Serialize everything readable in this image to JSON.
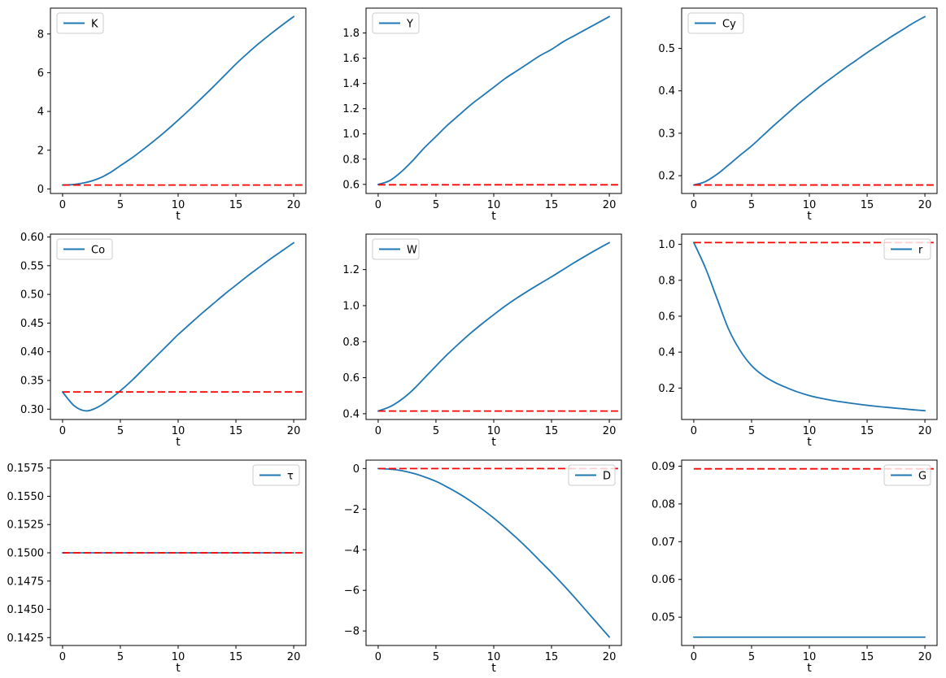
{
  "figure": {
    "background": "#ffffff",
    "series_color": "#1f77b4",
    "steady_state_color": "#ff0000",
    "spine_color": "#000000",
    "legend_border_color": "#cccccc",
    "xlabel": "t",
    "xticks": [
      0,
      5,
      10,
      15,
      20
    ],
    "xtick_labels": [
      "0",
      "5",
      "10",
      "15",
      "20"
    ],
    "xlim": [
      -1.05,
      21.05
    ]
  },
  "chart_data": [
    {
      "type": "line",
      "name": "K",
      "legend_label": "K",
      "legend_position": "upper-left",
      "xlabel": "t",
      "x": [
        0,
        1,
        2,
        3,
        4,
        5,
        6,
        7,
        8,
        9,
        10,
        11,
        12,
        13,
        14,
        15,
        16,
        17,
        18,
        19,
        20
      ],
      "series": [
        {
          "name": "K",
          "values": [
            0.2,
            0.23,
            0.33,
            0.51,
            0.8,
            1.2,
            1.6,
            2.05,
            2.52,
            3.02,
            3.55,
            4.1,
            4.67,
            5.25,
            5.85,
            6.45,
            7.0,
            7.52,
            8.0,
            8.46,
            8.9
          ]
        },
        {
          "name": "steady-state",
          "style": "dashed",
          "constant": 0.2,
          "x_range": [
            0,
            21
          ]
        }
      ],
      "xlim": [
        -1.05,
        21.05
      ],
      "ylim": [
        -0.235,
        9.335
      ],
      "yticks": [
        0,
        2,
        4,
        6,
        8
      ],
      "ytick_labels": [
        "0",
        "2",
        "4",
        "6",
        "8"
      ],
      "grid": false
    },
    {
      "type": "line",
      "name": "Y",
      "legend_label": "Y",
      "legend_position": "upper-left",
      "xlabel": "t",
      "x": [
        0,
        1,
        2,
        3,
        4,
        5,
        6,
        7,
        8,
        9,
        10,
        11,
        12,
        13,
        14,
        15,
        16,
        17,
        18,
        19,
        20
      ],
      "series": [
        {
          "name": "Y",
          "values": [
            0.6,
            0.63,
            0.7,
            0.79,
            0.89,
            0.98,
            1.07,
            1.15,
            1.23,
            1.3,
            1.37,
            1.44,
            1.5,
            1.56,
            1.62,
            1.67,
            1.73,
            1.78,
            1.83,
            1.88,
            1.93
          ]
        },
        {
          "name": "steady-state",
          "style": "dashed",
          "constant": 0.597,
          "x_range": [
            0,
            21
          ]
        }
      ],
      "xlim": [
        -1.05,
        21.05
      ],
      "ylim": [
        0.528,
        1.997
      ],
      "yticks": [
        0.6,
        0.8,
        1.0,
        1.2,
        1.4,
        1.6,
        1.8
      ],
      "ytick_labels": [
        "0.6",
        "0.8",
        "1.0",
        "1.2",
        "1.4",
        "1.6",
        "1.8"
      ],
      "grid": false
    },
    {
      "type": "line",
      "name": "Cy",
      "legend_label": "Cy",
      "legend_position": "upper-left",
      "xlabel": "t",
      "x": [
        0,
        1,
        2,
        3,
        4,
        5,
        6,
        7,
        8,
        9,
        10,
        11,
        12,
        13,
        14,
        15,
        16,
        17,
        18,
        19,
        20
      ],
      "series": [
        {
          "name": "Cy",
          "values": [
            0.178,
            0.186,
            0.203,
            0.225,
            0.248,
            0.27,
            0.295,
            0.32,
            0.344,
            0.368,
            0.39,
            0.412,
            0.432,
            0.452,
            0.471,
            0.49,
            0.508,
            0.526,
            0.543,
            0.56,
            0.575
          ]
        },
        {
          "name": "steady-state",
          "style": "dashed",
          "constant": 0.178,
          "x_range": [
            0,
            21
          ]
        }
      ],
      "xlim": [
        -1.05,
        21.05
      ],
      "ylim": [
        0.158,
        0.595
      ],
      "yticks": [
        0.2,
        0.3,
        0.4,
        0.5
      ],
      "ytick_labels": [
        "0.2",
        "0.3",
        "0.4",
        "0.5"
      ],
      "grid": false
    },
    {
      "type": "line",
      "name": "Co",
      "legend_label": "Co",
      "legend_position": "upper-left",
      "xlabel": "t",
      "x": [
        0,
        1,
        2,
        3,
        4,
        5,
        6,
        7,
        8,
        9,
        10,
        11,
        12,
        13,
        14,
        15,
        16,
        17,
        18,
        19,
        20
      ],
      "series": [
        {
          "name": "Co",
          "values": [
            0.33,
            0.306,
            0.297,
            0.303,
            0.316,
            0.332,
            0.35,
            0.37,
            0.39,
            0.41,
            0.43,
            0.448,
            0.466,
            0.483,
            0.5,
            0.516,
            0.532,
            0.547,
            0.562,
            0.576,
            0.59
          ]
        },
        {
          "name": "steady-state",
          "style": "dashed",
          "constant": 0.33,
          "x_range": [
            0,
            21
          ]
        }
      ],
      "xlim": [
        -1.05,
        21.05
      ],
      "ylim": [
        0.282,
        0.605
      ],
      "yticks": [
        0.3,
        0.35,
        0.4,
        0.45,
        0.5,
        0.55,
        0.6
      ],
      "ytick_labels": [
        "0.30",
        "0.35",
        "0.40",
        "0.45",
        "0.50",
        "0.55",
        "0.60"
      ],
      "grid": false
    },
    {
      "type": "line",
      "name": "W",
      "legend_label": "W",
      "legend_position": "upper-left",
      "xlabel": "t",
      "x": [
        0,
        1,
        2,
        3,
        4,
        5,
        6,
        7,
        8,
        9,
        10,
        11,
        12,
        13,
        14,
        15,
        16,
        17,
        18,
        19,
        20
      ],
      "series": [
        {
          "name": "W",
          "values": [
            0.415,
            0.438,
            0.478,
            0.532,
            0.598,
            0.665,
            0.73,
            0.79,
            0.847,
            0.9,
            0.95,
            0.998,
            1.042,
            1.083,
            1.122,
            1.16,
            1.2,
            1.24,
            1.278,
            1.315,
            1.35
          ]
        },
        {
          "name": "steady-state",
          "style": "dashed",
          "constant": 0.415,
          "x_range": [
            0,
            21
          ]
        }
      ],
      "xlim": [
        -1.05,
        21.05
      ],
      "ylim": [
        0.368,
        1.397
      ],
      "yticks": [
        0.4,
        0.6,
        0.8,
        1.0,
        1.2
      ],
      "ytick_labels": [
        "0.4",
        "0.6",
        "0.8",
        "1.0",
        "1.2"
      ],
      "grid": false
    },
    {
      "type": "line",
      "name": "r",
      "legend_label": "r",
      "legend_position": "upper-right",
      "xlabel": "t",
      "x": [
        0,
        1,
        2,
        3,
        4,
        5,
        6,
        7,
        8,
        9,
        10,
        11,
        12,
        13,
        14,
        15,
        16,
        17,
        18,
        19,
        20
      ],
      "series": [
        {
          "name": "r",
          "values": [
            1.01,
            0.87,
            0.7,
            0.53,
            0.41,
            0.325,
            0.27,
            0.232,
            0.203,
            0.178,
            0.158,
            0.143,
            0.131,
            0.121,
            0.112,
            0.104,
            0.097,
            0.091,
            0.085,
            0.079,
            0.074
          ]
        },
        {
          "name": "steady-state",
          "style": "dashed",
          "constant": 1.01,
          "x_range": [
            0,
            21
          ]
        }
      ],
      "xlim": [
        -1.05,
        21.05
      ],
      "ylim": [
        0.025,
        1.057
      ],
      "yticks": [
        0.2,
        0.4,
        0.6,
        0.8,
        1.0
      ],
      "ytick_labels": [
        "0.2",
        "0.4",
        "0.6",
        "0.8",
        "1.0"
      ],
      "grid": false
    },
    {
      "type": "line",
      "name": "tau",
      "legend_label": "τ",
      "legend_position": "upper-right",
      "xlabel": "t",
      "x": [
        0,
        1,
        2,
        3,
        4,
        5,
        6,
        7,
        8,
        9,
        10,
        11,
        12,
        13,
        14,
        15,
        16,
        17,
        18,
        19,
        20
      ],
      "series": [
        {
          "name": "τ",
          "values": [
            0.15,
            0.15,
            0.15,
            0.15,
            0.15,
            0.15,
            0.15,
            0.15,
            0.15,
            0.15,
            0.15,
            0.15,
            0.15,
            0.15,
            0.15,
            0.15,
            0.15,
            0.15,
            0.15,
            0.15,
            0.15
          ]
        },
        {
          "name": "steady-state",
          "style": "dashed",
          "constant": 0.15,
          "x_range": [
            0,
            21
          ]
        }
      ],
      "xlim": [
        -1.05,
        21.05
      ],
      "ylim": [
        0.1418,
        0.1582
      ],
      "yticks": [
        0.1425,
        0.145,
        0.1475,
        0.15,
        0.1525,
        0.155,
        0.1575
      ],
      "ytick_labels": [
        "0.1425",
        "0.1450",
        "0.1475",
        "0.1500",
        "0.1525",
        "0.1550",
        "0.1575"
      ],
      "grid": false
    },
    {
      "type": "line",
      "name": "D",
      "legend_label": "D",
      "legend_position": "upper-right",
      "xlabel": "t",
      "x": [
        0,
        1,
        2,
        3,
        4,
        5,
        6,
        7,
        8,
        9,
        10,
        11,
        12,
        13,
        14,
        15,
        16,
        17,
        18,
        19,
        20
      ],
      "series": [
        {
          "name": "D",
          "values": [
            0.0,
            -0.03,
            -0.1,
            -0.23,
            -0.41,
            -0.63,
            -0.92,
            -1.24,
            -1.6,
            -2.0,
            -2.44,
            -2.92,
            -3.43,
            -3.97,
            -4.55,
            -5.12,
            -5.72,
            -6.35,
            -7.0,
            -7.65,
            -8.3
          ]
        },
        {
          "name": "steady-state",
          "style": "dashed",
          "constant": 0.0,
          "x_range": [
            0,
            21
          ]
        }
      ],
      "xlim": [
        -1.05,
        21.05
      ],
      "ylim": [
        -8.715,
        0.415
      ],
      "yticks": [
        0,
        -2,
        -4,
        -6,
        -8
      ],
      "ytick_labels": [
        "0",
        "−2",
        "−4",
        "−6",
        "−8"
      ],
      "grid": false
    },
    {
      "type": "line",
      "name": "G",
      "legend_label": "G",
      "legend_position": "upper-right",
      "xlabel": "t",
      "x": [
        0,
        1,
        2,
        3,
        4,
        5,
        6,
        7,
        8,
        9,
        10,
        11,
        12,
        13,
        14,
        15,
        16,
        17,
        18,
        19,
        20
      ],
      "series": [
        {
          "name": "G",
          "values": [
            0.0447,
            0.0447,
            0.0447,
            0.0447,
            0.0447,
            0.0447,
            0.0447,
            0.0447,
            0.0447,
            0.0447,
            0.0447,
            0.0447,
            0.0447,
            0.0447,
            0.0447,
            0.0447,
            0.0447,
            0.0447,
            0.0447,
            0.0447,
            0.0447
          ]
        },
        {
          "name": "steady-state",
          "style": "dashed",
          "constant": 0.0893,
          "x_range": [
            0,
            21
          ]
        }
      ],
      "xlim": [
        -1.05,
        21.05
      ],
      "ylim": [
        0.0425,
        0.0916
      ],
      "yticks": [
        0.05,
        0.06,
        0.07,
        0.08,
        0.09
      ],
      "ytick_labels": [
        "0.05",
        "0.06",
        "0.07",
        "0.08",
        "0.09"
      ],
      "grid": false
    }
  ]
}
